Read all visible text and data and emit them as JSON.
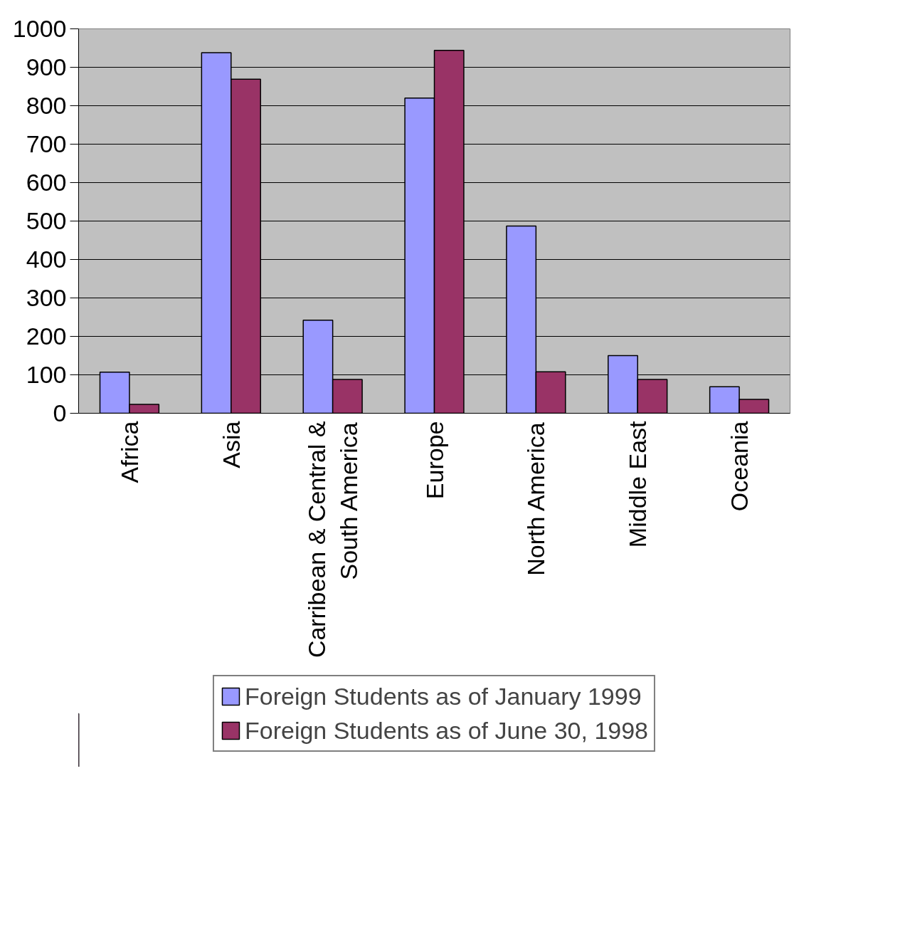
{
  "chart_data": {
    "type": "bar",
    "categories": [
      "Africa",
      "Asia",
      "Carribean & Central & South America",
      "Europe",
      "North America",
      "Middle East",
      "Oceania"
    ],
    "series": [
      {
        "name": "Foreign Students as of January 1999",
        "color": "#9999ff",
        "values": [
          107,
          938,
          242,
          820,
          487,
          150,
          69
        ]
      },
      {
        "name": "Foreign Students as of June 30, 1998",
        "color": "#993366",
        "values": [
          23,
          869,
          88,
          944,
          108,
          88,
          36
        ]
      }
    ],
    "ylim": [
      0,
      1000
    ],
    "yticks": [
      0,
      100,
      200,
      300,
      400,
      500,
      600,
      700,
      800,
      900,
      1000
    ],
    "grid": "y",
    "legend": "bottom"
  }
}
